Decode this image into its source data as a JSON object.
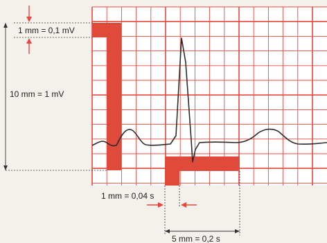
{
  "labels": {
    "amplitude_small": "1 mm = 0,1 mV",
    "amplitude_large": "10 mm = 1 mV",
    "time_small": "1 mm = 0,04 s",
    "time_large": "5 mm = 0,2 s"
  },
  "colors": {
    "grid": "#e8483c",
    "highlight": "#e04a3a",
    "background": "#f4f1ec",
    "trace": "#2b2b2b",
    "annotation_lines": "#333333",
    "arrows": "#e8483c"
  }
}
